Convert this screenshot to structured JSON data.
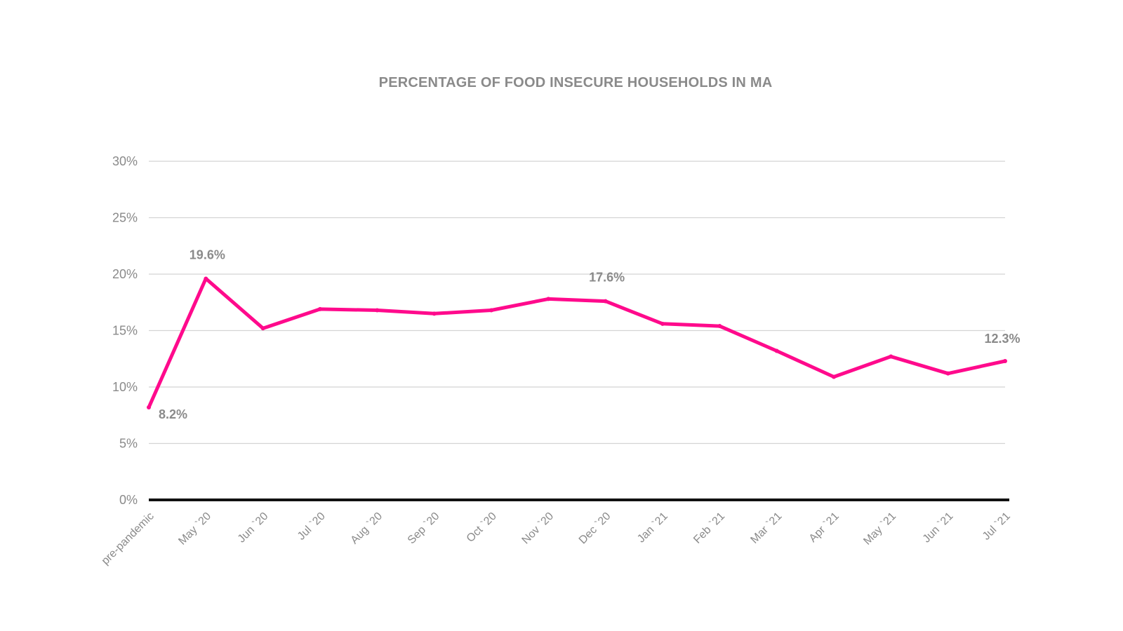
{
  "chart_data": {
    "type": "line",
    "title": "PERCENTAGE OF FOOD INSECURE HOUSEHOLDS IN MA",
    "xlabel": "",
    "ylabel": "",
    "categories": [
      "pre-pandemic",
      "May `20",
      "Jun `20",
      "Jul `20",
      "Aug `20",
      "Sep `20",
      "Oct `20",
      "Nov `20",
      "Dec `20",
      "Jan `21",
      "Feb `21",
      "Mar `21",
      "Apr `21",
      "May `21",
      "Jun `21",
      "Jul `21"
    ],
    "series": [
      {
        "values": [
          8.2,
          19.6,
          15.2,
          16.9,
          16.8,
          16.5,
          16.8,
          17.8,
          17.6,
          15.6,
          15.4,
          13.2,
          10.9,
          12.7,
          11.2,
          12.3
        ],
        "color": "#ff0a8c"
      }
    ],
    "ylim": [
      0,
      30
    ],
    "yticks": [
      0,
      5,
      10,
      15,
      20,
      25,
      30
    ],
    "ytick_labels": [
      "0%",
      "5%",
      "10%",
      "15%",
      "20%",
      "25%",
      "30%"
    ],
    "grid": true,
    "data_labels": [
      {
        "category": "pre-pandemic",
        "text": "8.2%"
      },
      {
        "category": "May `20",
        "text": "19.6%"
      },
      {
        "category": "Dec `20",
        "text": "17.6%"
      },
      {
        "category": "Jul `21",
        "text": "12.3%"
      }
    ],
    "colors": {
      "line": "#ff0a8c",
      "text": "#8a8a8a",
      "grid": "#d4d4d4",
      "baseline": "#111111"
    }
  }
}
